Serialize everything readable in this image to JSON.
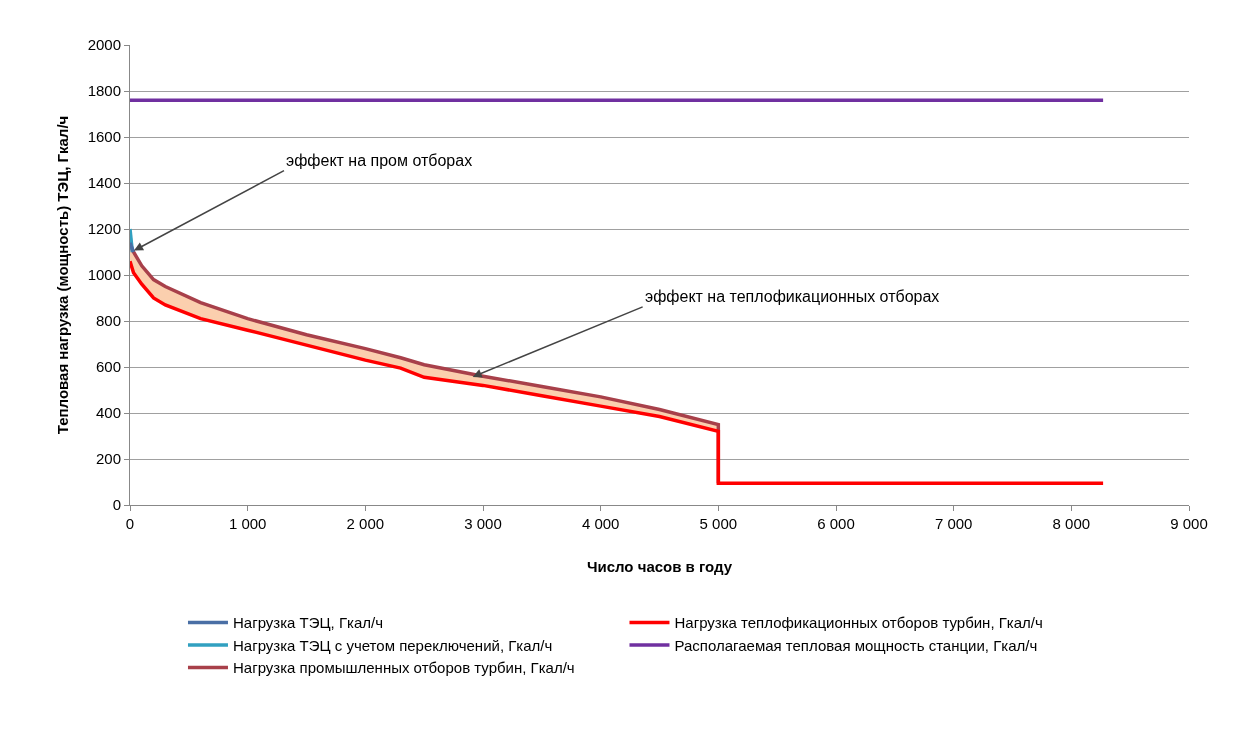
{
  "chart_data": {
    "type": "line",
    "xlabel": "Число часов в году",
    "ylabel": "Тепловая нагрузка (мощность) ТЭЦ, Гкал/ч",
    "xlim": [
      0,
      9000
    ],
    "ylim": [
      0,
      2000
    ],
    "xticks": [
      0,
      {
        "value": 1000,
        "label": "1 000"
      },
      {
        "value": 2000,
        "label": "2 000"
      },
      {
        "value": 3000,
        "label": "3 000"
      },
      {
        "value": 4000,
        "label": "4 000"
      },
      {
        "value": 5000,
        "label": "5 000"
      },
      {
        "value": 6000,
        "label": "6 000"
      },
      {
        "value": 7000,
        "label": "7 000"
      },
      {
        "value": 8000,
        "label": "8 000"
      },
      {
        "value": 9000,
        "label": "9 000"
      }
    ],
    "yticks": [
      0,
      200,
      400,
      600,
      800,
      1000,
      1200,
      1400,
      1600,
      1800,
      2000
    ],
    "grid": "y",
    "legend": "bottom",
    "marker": "none",
    "line_style": "solid",
    "series": [
      {
        "name": "Нагрузка ТЭЦ, Гкал/ч",
        "color": "#4a6fa5",
        "x": [
          0,
          30
        ],
        "values": [
          1140,
          1100
        ]
      },
      {
        "name": "Нагрузка теплофикационных отборов турбин, Гкал/ч",
        "color": "#ff0000",
        "x": [
          0,
          30,
          100,
          200,
          300,
          600,
          1000,
          1500,
          2000,
          2300,
          2500,
          3000,
          3500,
          4000,
          4500,
          5000,
          5000,
          8270
        ],
        "values": [
          1060,
          1010,
          960,
          900,
          870,
          810,
          760,
          695,
          630,
          595,
          555,
          520,
          475,
          430,
          385,
          320,
          95,
          95
        ]
      },
      {
        "name": "Нагрузка ТЭЦ с учетом переключений, Гкал/ч",
        "color": "#31a0c0",
        "x": [
          0,
          20
        ],
        "values": [
          1200,
          1100
        ]
      },
      {
        "name": "Располагаемая тепловая мощность станции, Гкал/ч",
        "color": "#7030a0",
        "x": [
          0,
          8270
        ],
        "values": [
          1760,
          1760
        ]
      },
      {
        "name": "Нагрузка промышленных отборов турбин, Гкал/ч",
        "color": "#a8404a",
        "x": [
          0,
          30,
          100,
          200,
          300,
          600,
          1000,
          1500,
          2000,
          2300,
          2500,
          3000,
          3500,
          4000,
          4500,
          5000,
          5000
        ],
        "values": [
          1130,
          1100,
          1040,
          980,
          950,
          880,
          810,
          740,
          680,
          640,
          610,
          560,
          515,
          470,
          415,
          350,
          95
        ],
        "lower": [
          1060,
          1010,
          960,
          900,
          870,
          810,
          760,
          695,
          630,
          595,
          555,
          520,
          475,
          430,
          385,
          320,
          95
        ],
        "upper": [
          1130,
          1100,
          1040,
          980,
          950,
          880,
          810,
          740,
          680,
          640,
          610,
          560,
          515,
          470,
          415,
          350,
          95
        ]
      }
    ],
    "annotations": [
      {
        "text": "эффект на пром отборах",
        "x": 34,
        "y": 1106
      },
      {
        "text": "эффект на теплофикационных отборах",
        "x": 2912,
        "y": 557
      }
    ]
  }
}
